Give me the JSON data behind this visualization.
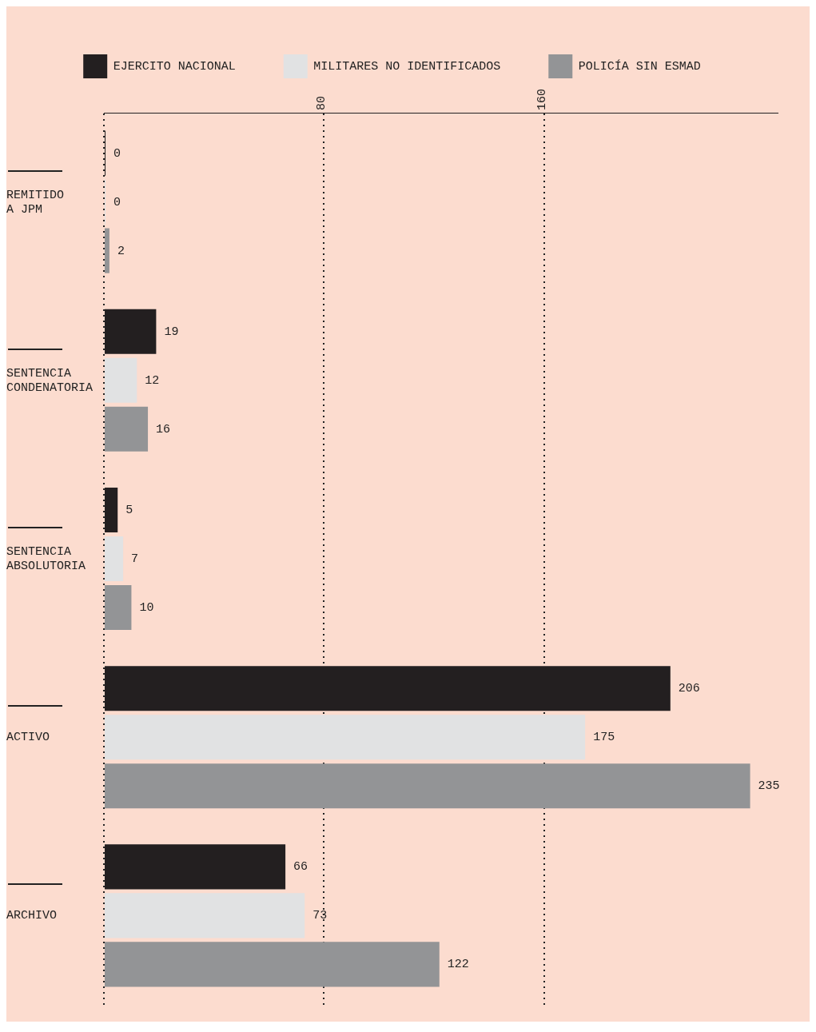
{
  "chart_data": {
    "type": "bar",
    "orientation": "horizontal",
    "categories": [
      "REMITIDO A JPM",
      "SENTENCIA CONDENATORIA",
      "SENTENCIA ABSOLUTORIA",
      "ACTIVO",
      "ARCHIVO"
    ],
    "series": [
      {
        "name": "EJERCITO NACIONAL",
        "color": "#231f20",
        "values": [
          0,
          19,
          5,
          206,
          66
        ]
      },
      {
        "name": "MILITARES NO IDENTIFICADOS",
        "color": "#e1e2e3",
        "values": [
          0,
          12,
          7,
          175,
          73
        ]
      },
      {
        "name": "POLICÍA SIN ESMAD",
        "color": "#939496",
        "values": [
          2,
          16,
          10,
          235,
          122
        ]
      }
    ],
    "xlim": [
      0,
      245
    ],
    "xticks": [
      {
        "value": 0,
        "label": null
      },
      80,
      160
    ],
    "grid": "x",
    "legend": "top",
    "data_labels": true
  }
}
